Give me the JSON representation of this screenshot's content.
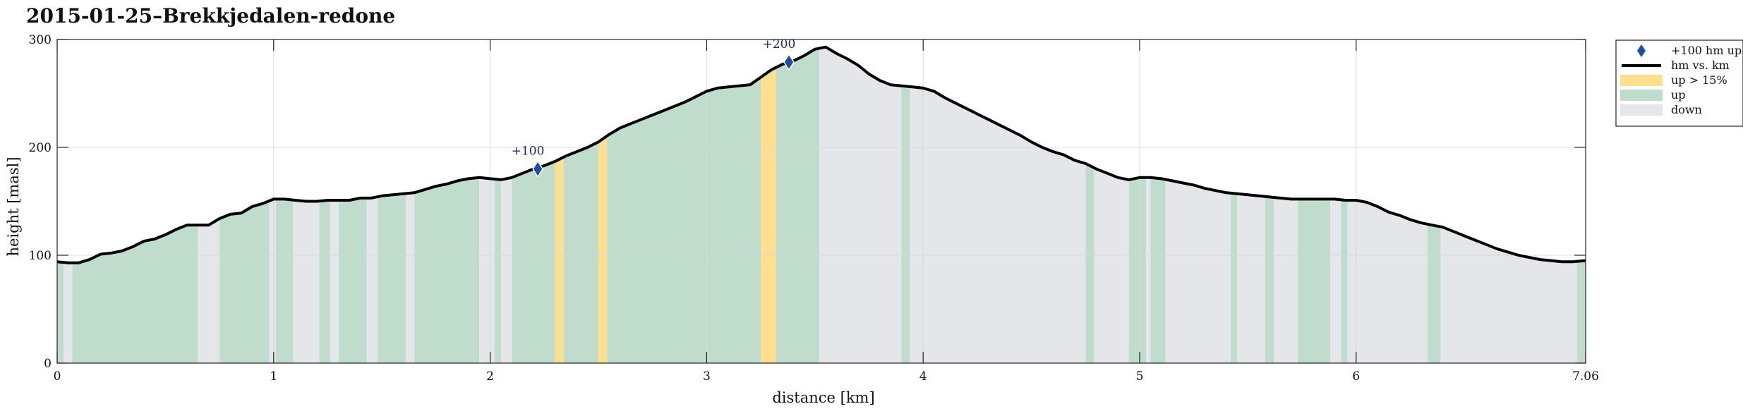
{
  "chart_data": {
    "type": "area",
    "title": "2015-01-25–Brekkjedalen-redone",
    "xlabel": "distance [km]",
    "ylabel": "height [masl]",
    "xlim": [
      0,
      7.06
    ],
    "ylim": [
      0,
      300
    ],
    "xticks": [
      0,
      1,
      2,
      3,
      4,
      5,
      6,
      7.06
    ],
    "xtick_labels": [
      "0",
      "1",
      "2",
      "3",
      "4",
      "5",
      "6",
      "7.06"
    ],
    "yticks": [
      0,
      100,
      200,
      300
    ],
    "ytick_labels": [
      "0",
      "100",
      "200",
      "300"
    ],
    "grid": true,
    "legend_position": "outside-right",
    "legend": [
      {
        "label": "+100 hm up",
        "kind": "marker",
        "color": "#1a4fa0"
      },
      {
        "label": "hm vs. km",
        "kind": "line",
        "color": "#000000"
      },
      {
        "label": "up > 15%",
        "kind": "patch",
        "color": "#fddf8e"
      },
      {
        "label": "up",
        "kind": "patch",
        "color": "#c0dccc"
      },
      {
        "label": "down",
        "kind": "patch",
        "color": "#e5e6ea"
      }
    ],
    "colors": {
      "steep": "#fddf8e",
      "up": "#c0dccc",
      "down": "#e5e6ea",
      "line": "#000000",
      "marker": "#1a4fa0"
    },
    "profile": {
      "x": [
        0,
        0.05,
        0.1,
        0.15,
        0.2,
        0.25,
        0.3,
        0.35,
        0.4,
        0.45,
        0.5,
        0.55,
        0.6,
        0.65,
        0.7,
        0.75,
        0.8,
        0.85,
        0.9,
        0.95,
        1.0,
        1.05,
        1.1,
        1.15,
        1.2,
        1.25,
        1.3,
        1.35,
        1.4,
        1.45,
        1.5,
        1.55,
        1.6,
        1.65,
        1.7,
        1.75,
        1.8,
        1.85,
        1.9,
        1.95,
        2.0,
        2.05,
        2.1,
        2.15,
        2.2,
        2.25,
        2.3,
        2.35,
        2.4,
        2.45,
        2.5,
        2.55,
        2.6,
        2.65,
        2.7,
        2.75,
        2.8,
        2.85,
        2.9,
        2.95,
        3.0,
        3.05,
        3.1,
        3.15,
        3.2,
        3.25,
        3.3,
        3.35,
        3.4,
        3.45,
        3.5,
        3.55,
        3.6,
        3.65,
        3.7,
        3.75,
        3.8,
        3.85,
        3.9,
        3.95,
        4.0,
        4.05,
        4.1,
        4.15,
        4.2,
        4.25,
        4.3,
        4.35,
        4.4,
        4.45,
        4.5,
        4.55,
        4.6,
        4.65,
        4.7,
        4.75,
        4.8,
        4.85,
        4.9,
        4.95,
        5.0,
        5.05,
        5.1,
        5.15,
        5.2,
        5.25,
        5.3,
        5.35,
        5.4,
        5.45,
        5.5,
        5.55,
        5.6,
        5.65,
        5.7,
        5.75,
        5.8,
        5.85,
        5.9,
        5.95,
        6.0,
        6.05,
        6.1,
        6.15,
        6.2,
        6.25,
        6.3,
        6.35,
        6.4,
        6.45,
        6.5,
        6.55,
        6.6,
        6.65,
        6.7,
        6.75,
        6.8,
        6.85,
        6.9,
        6.95,
        7.0,
        7.06
      ],
      "y": [
        94,
        93,
        93,
        96,
        101,
        102,
        104,
        108,
        113,
        115,
        119,
        124,
        128,
        128,
        128,
        134,
        138,
        139,
        145,
        148,
        152,
        152,
        151,
        150,
        150,
        151,
        151,
        151,
        153,
        153,
        155,
        156,
        157,
        158,
        161,
        164,
        166,
        169,
        171,
        172,
        171,
        170,
        172,
        176,
        180,
        183,
        187,
        192,
        196,
        200,
        205,
        212,
        218,
        222,
        226,
        230,
        234,
        238,
        242,
        247,
        252,
        255,
        256,
        257,
        258,
        265,
        272,
        277,
        280,
        285,
        291,
        293,
        287,
        282,
        276,
        268,
        262,
        258,
        257,
        256,
        255,
        252,
        246,
        241,
        236,
        231,
        226,
        221,
        216,
        211,
        205,
        200,
        196,
        193,
        188,
        185,
        180,
        176,
        172,
        170,
        172,
        172,
        171,
        169,
        167,
        165,
        162,
        160,
        158,
        157,
        156,
        155,
        154,
        153,
        152,
        152,
        152,
        152,
        152,
        151,
        151,
        149,
        145,
        140,
        137,
        133,
        130,
        128,
        126,
        122,
        118,
        114,
        110,
        106,
        103,
        100,
        98,
        96,
        95,
        94,
        94,
        95
      ]
    },
    "bands": [
      {
        "from": 0.0,
        "to": 0.03,
        "type": "up"
      },
      {
        "from": 0.03,
        "to": 0.07,
        "type": "down"
      },
      {
        "from": 0.07,
        "to": 0.65,
        "type": "up"
      },
      {
        "from": 0.65,
        "to": 0.75,
        "type": "down"
      },
      {
        "from": 0.75,
        "to": 0.98,
        "type": "up"
      },
      {
        "from": 0.98,
        "to": 1.01,
        "type": "down"
      },
      {
        "from": 1.01,
        "to": 1.09,
        "type": "up"
      },
      {
        "from": 1.09,
        "to": 1.21,
        "type": "down"
      },
      {
        "from": 1.21,
        "to": 1.26,
        "type": "up"
      },
      {
        "from": 1.26,
        "to": 1.3,
        "type": "down"
      },
      {
        "from": 1.3,
        "to": 1.43,
        "type": "up"
      },
      {
        "from": 1.43,
        "to": 1.48,
        "type": "down"
      },
      {
        "from": 1.48,
        "to": 1.61,
        "type": "up"
      },
      {
        "from": 1.61,
        "to": 1.65,
        "type": "down"
      },
      {
        "from": 1.65,
        "to": 1.95,
        "type": "up"
      },
      {
        "from": 1.95,
        "to": 2.02,
        "type": "down"
      },
      {
        "from": 2.02,
        "to": 2.05,
        "type": "up"
      },
      {
        "from": 2.05,
        "to": 2.1,
        "type": "down"
      },
      {
        "from": 2.1,
        "to": 2.3,
        "type": "up"
      },
      {
        "from": 2.3,
        "to": 2.34,
        "type": "steep"
      },
      {
        "from": 2.34,
        "to": 2.5,
        "type": "up"
      },
      {
        "from": 2.5,
        "to": 2.54,
        "type": "steep"
      },
      {
        "from": 2.54,
        "to": 3.25,
        "type": "up"
      },
      {
        "from": 3.25,
        "to": 3.32,
        "type": "steep"
      },
      {
        "from": 3.32,
        "to": 3.52,
        "type": "up"
      },
      {
        "from": 3.52,
        "to": 3.9,
        "type": "down"
      },
      {
        "from": 3.9,
        "to": 3.94,
        "type": "up"
      },
      {
        "from": 3.94,
        "to": 4.75,
        "type": "down"
      },
      {
        "from": 4.75,
        "to": 4.79,
        "type": "up"
      },
      {
        "from": 4.79,
        "to": 4.95,
        "type": "down"
      },
      {
        "from": 4.95,
        "to": 5.03,
        "type": "up"
      },
      {
        "from": 5.03,
        "to": 5.05,
        "type": "down"
      },
      {
        "from": 5.05,
        "to": 5.12,
        "type": "up"
      },
      {
        "from": 5.12,
        "to": 5.42,
        "type": "down"
      },
      {
        "from": 5.42,
        "to": 5.45,
        "type": "up"
      },
      {
        "from": 5.45,
        "to": 5.58,
        "type": "down"
      },
      {
        "from": 5.58,
        "to": 5.62,
        "type": "up"
      },
      {
        "from": 5.62,
        "to": 5.73,
        "type": "down"
      },
      {
        "from": 5.73,
        "to": 5.88,
        "type": "up"
      },
      {
        "from": 5.88,
        "to": 5.93,
        "type": "down"
      },
      {
        "from": 5.93,
        "to": 5.96,
        "type": "up"
      },
      {
        "from": 5.96,
        "to": 6.33,
        "type": "down"
      },
      {
        "from": 6.33,
        "to": 6.39,
        "type": "up"
      },
      {
        "from": 6.39,
        "to": 7.02,
        "type": "down"
      },
      {
        "from": 7.02,
        "to": 7.06,
        "type": "up"
      }
    ],
    "annotations": [
      {
        "x": 2.22,
        "y": 180,
        "label": "+100"
      },
      {
        "x": 3.38,
        "y": 279,
        "label": "+200"
      }
    ]
  }
}
